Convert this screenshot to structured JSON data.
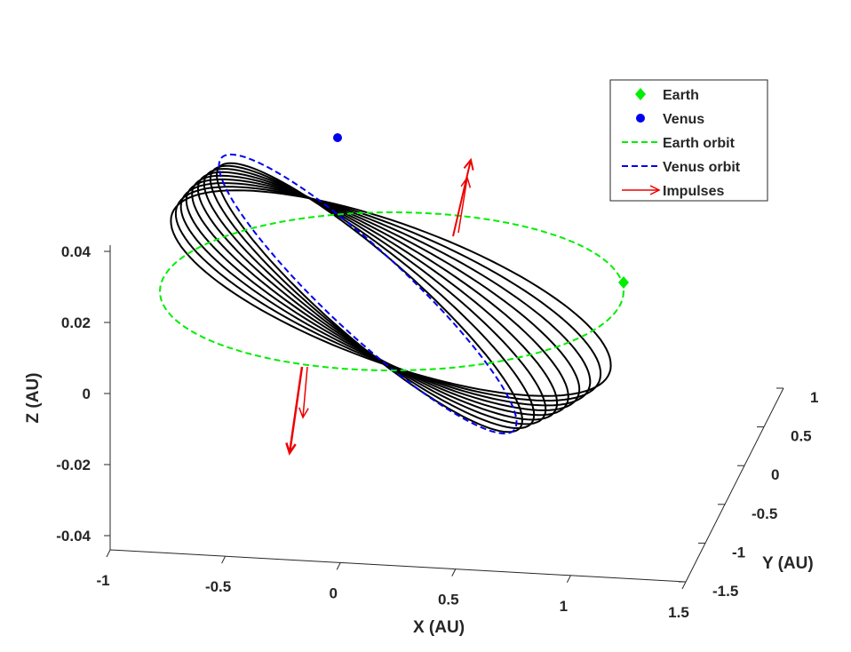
{
  "chart_data": {
    "type": "line",
    "view": "3d",
    "xlabel": "X (AU)",
    "ylabel": "Y (AU)",
    "zlabel": "Z (AU)",
    "xlim": [
      -1,
      1.5
    ],
    "ylim": [
      -1.5,
      1
    ],
    "zlim": [
      -0.045,
      0.045
    ],
    "xticks": [
      "-1",
      "-0.5",
      "0",
      "0.5",
      "1",
      "1.5"
    ],
    "yticks": [
      "-1.5",
      "-1",
      "-0.5",
      "0",
      "0.5",
      "1"
    ],
    "zticks": [
      "-0.04",
      "-0.02",
      "0",
      "0.02",
      "0.04"
    ],
    "grid": false,
    "legend_position": "top-right",
    "legend": [
      {
        "label": "Earth",
        "marker": "diamond",
        "color": "#00ee00"
      },
      {
        "label": "Venus",
        "marker": "circle",
        "color": "#0000ee"
      },
      {
        "label": "Earth orbit",
        "style": "dashed",
        "color": "#00ee00"
      },
      {
        "label": "Venus orbit",
        "style": "dashed",
        "color": "#0000ee"
      },
      {
        "label": "Impulses",
        "style": "arrow",
        "color": "#ee0000"
      }
    ],
    "series": [
      {
        "name": "Earth orbit",
        "semi_major_axis_au": 1.0,
        "inclination_deg": 0,
        "color": "#00ee00",
        "dash": true
      },
      {
        "name": "Venus orbit",
        "semi_major_axis_au": 0.723,
        "inclination_deg": 3.39,
        "color": "#0000ee",
        "dash": true
      },
      {
        "name": "transfer orbits",
        "count": 9,
        "inclination_range_deg": [
          0.5,
          3.2
        ],
        "color": "#000000"
      }
    ],
    "earth_position": {
      "x": 1.0,
      "y": 0.0,
      "z": 0.0
    },
    "venus_position": {
      "x": -0.3,
      "y": 0.7,
      "z": 0.043
    },
    "impulses": [
      {
        "x": 0.6,
        "y": 0.8,
        "z": 0.0,
        "direction": "up",
        "count": 2
      },
      {
        "x": -0.4,
        "y": -0.9,
        "z": 0.0,
        "direction": "down",
        "count": 2
      }
    ],
    "colors": {
      "earth": "#00ee00",
      "venus": "#0000ee",
      "impulse": "#ee0000",
      "transfer": "#000000"
    }
  }
}
